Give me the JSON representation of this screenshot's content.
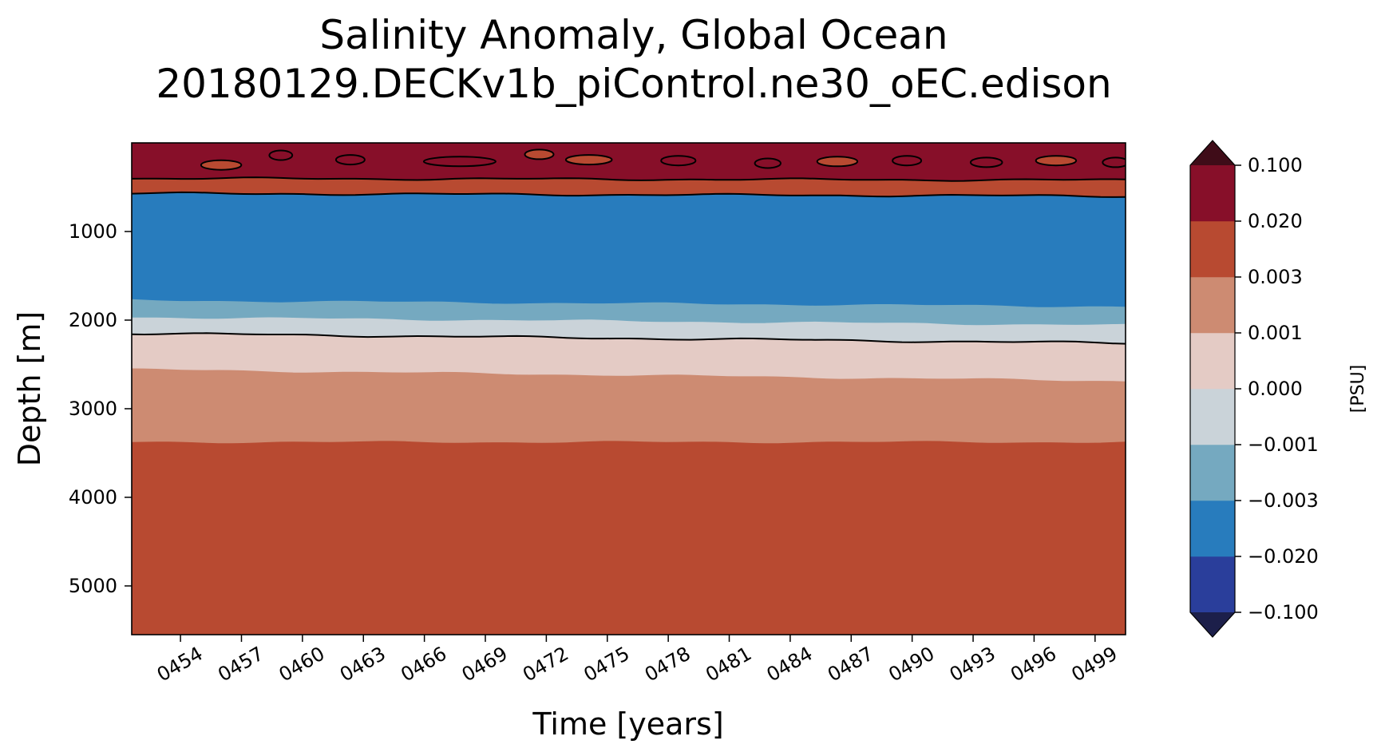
{
  "chart_data": {
    "type": "heatmap",
    "title": "Salinity Anomaly, Global Ocean",
    "subtitle": "20180129.DECKv1b_piControl.ne30_oEC.edison",
    "xlabel": "Time [years]",
    "ylabel": "Depth [m]",
    "x_ticks": [
      "0454",
      "0457",
      "0460",
      "0463",
      "0466",
      "0469",
      "0472",
      "0475",
      "0478",
      "0481",
      "0484",
      "0487",
      "0490",
      "0493",
      "0496",
      "0499"
    ],
    "xlim": [
      451.6,
      500.5
    ],
    "y_ticks": [
      1000,
      2000,
      3000,
      4000,
      5000
    ],
    "ylim": [
      5550,
      0
    ],
    "colorbar": {
      "label": "[PSU]",
      "levels": [
        "−0.100",
        "−0.020",
        "−0.003",
        "−0.001",
        "0.000",
        "0.001",
        "0.003",
        "0.020",
        "0.100"
      ],
      "colors": [
        "#2a3e9b",
        "#287cbd",
        "#75a9c0",
        "#cad3d9",
        "#e4cbc5",
        "#cd8b72",
        "#b84a31",
        "#870f29"
      ],
      "extend_low_color": "#1c1f4a",
      "extend_high_color": "#3f0c18"
    },
    "bands": [
      {
        "range": "0.020 to 0.100",
        "color": "#870f29",
        "top": [
          0,
          0
        ],
        "bottom": [
          400,
          420
        ]
      },
      {
        "range": "0.003 to 0.020",
        "color": "#b84a31",
        "top": [
          400,
          420
        ],
        "bottom": [
          570,
          600
        ]
      },
      {
        "range": "−0.020 to −0.003",
        "color": "#287cbd",
        "top": [
          570,
          600
        ],
        "bottom": [
          1780,
          1850
        ]
      },
      {
        "range": "−0.003 to −0.001",
        "color": "#75a9c0",
        "top": [
          1780,
          1850
        ],
        "bottom": [
          1970,
          2060
        ]
      },
      {
        "range": "−0.001 to 0.000",
        "color": "#cad3d9",
        "top": [
          1970,
          2060
        ],
        "bottom": [
          2150,
          2260
        ]
      },
      {
        "range": "0.000 to 0.001",
        "color": "#e4cbc5",
        "top": [
          2150,
          2260
        ],
        "bottom": [
          2560,
          2690
        ]
      },
      {
        "range": "0.001 to 0.003",
        "color": "#cd8b72",
        "top": [
          2560,
          2690
        ],
        "bottom": [
          3380,
          3380
        ]
      },
      {
        "range": "0.003 to 0.020",
        "color": "#b84a31",
        "top": [
          3380,
          3380
        ],
        "bottom": [
          5550,
          5550
        ]
      }
    ]
  }
}
